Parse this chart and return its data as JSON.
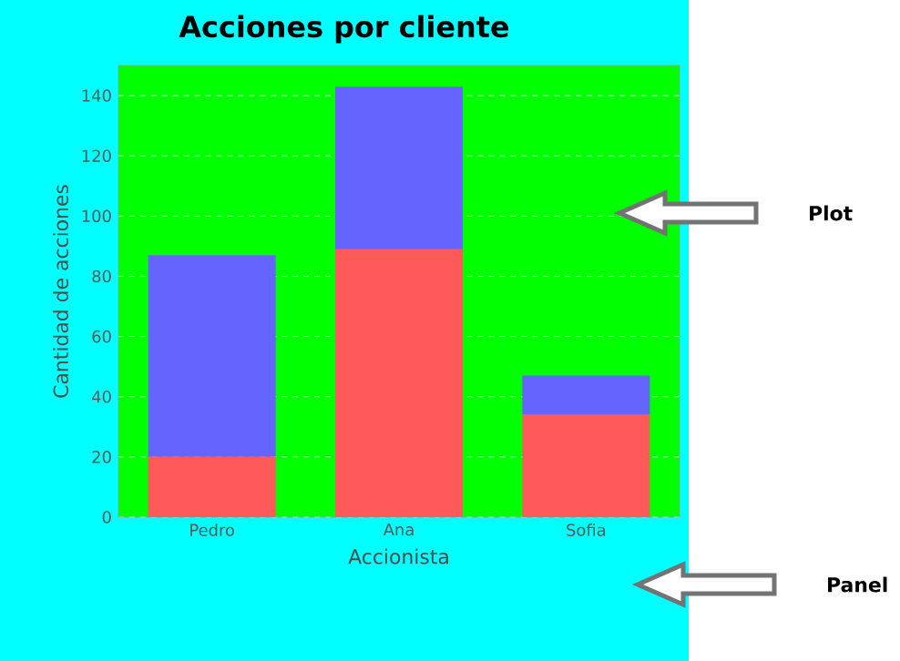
{
  "chart_data": {
    "type": "bar",
    "title": "Acciones por cliente",
    "xlabel": "Accionista",
    "ylabel": "Cantidad de acciones",
    "categories": [
      "Pedro",
      "Ana",
      "Sofia"
    ],
    "series": [
      {
        "color": "#ff5a5a",
        "values": [
          20,
          89,
          34
        ]
      },
      {
        "color": "#6464ff",
        "values": [
          67,
          54,
          13
        ]
      }
    ],
    "stacked": true,
    "ylim": [
      0,
      150
    ],
    "yticks": [
      0,
      20,
      40,
      60,
      80,
      100,
      120,
      140
    ],
    "grid": "y",
    "annotations": [
      "Plot",
      "Panel"
    ]
  }
}
